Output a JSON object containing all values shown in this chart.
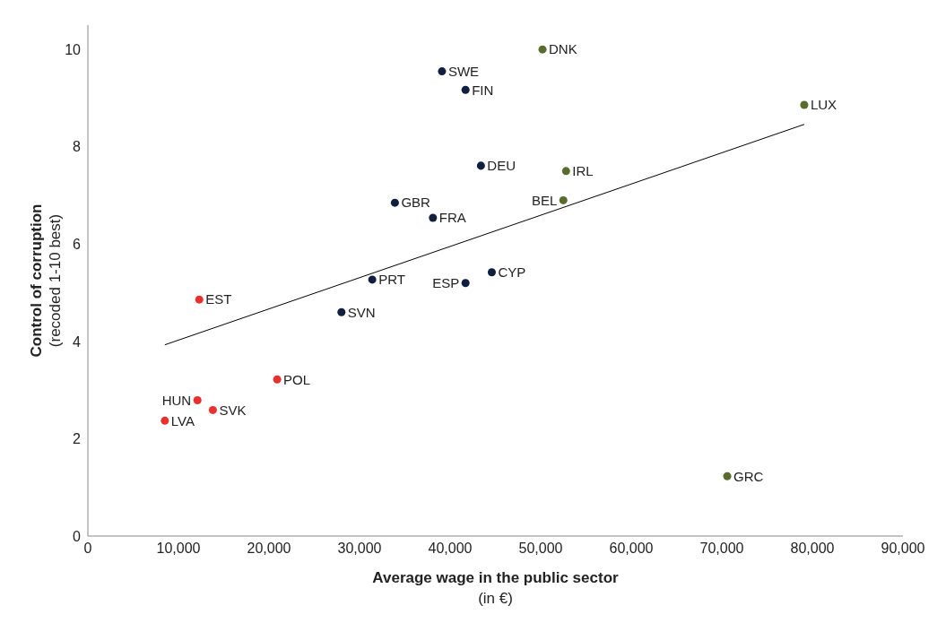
{
  "chart_data": {
    "type": "scatter",
    "xlabel": "Average wage in the public sector (in €)",
    "ylabel": "Control of corruption (recoded 1-10 best)",
    "xlim": [
      0,
      90000
    ],
    "xticks": [
      {
        "value": 0,
        "label": "0"
      },
      {
        "value": 10000,
        "label": "10,000"
      },
      {
        "value": 20000,
        "label": "20,000"
      },
      {
        "value": 30000,
        "label": "30,000"
      },
      {
        "value": 40000,
        "label": "40,000"
      },
      {
        "value": 50000,
        "label": "50,000"
      },
      {
        "value": 60000,
        "label": "60,000"
      },
      {
        "value": 70000,
        "label": "70,000"
      },
      {
        "value": 80000,
        "label": "80,000"
      },
      {
        "value": 90000,
        "label": "90,000"
      }
    ],
    "ylim": [
      0,
      10.5
    ],
    "yticks": [
      0,
      2,
      4,
      6,
      8,
      10
    ],
    "grid": false,
    "marker": "circle",
    "series": [
      {
        "type": "scatter",
        "color": "#0f1f3d",
        "x": [
          39100,
          41700,
          43400,
          33900,
          38100,
          31400,
          44600,
          41700,
          28000
        ],
        "values": [
          9.55,
          9.17,
          7.61,
          6.85,
          6.54,
          5.27,
          5.42,
          5.2,
          4.6
        ]
      },
      {
        "type": "scatter",
        "color": "#5a6b2e",
        "x": [
          50200,
          79100,
          52800,
          52500,
          70600
        ],
        "values": [
          10.0,
          8.86,
          7.5,
          6.9,
          1.23
        ]
      },
      {
        "type": "scatter",
        "color": "#e8312f",
        "x": [
          12300,
          20900,
          12100,
          13800,
          8500
        ],
        "values": [
          4.86,
          3.22,
          2.79,
          2.59,
          2.37
        ]
      },
      {
        "type": "line",
        "color": "#000000",
        "marker": "none",
        "x": [
          8500,
          79100
        ],
        "values": [
          3.93,
          8.46
        ]
      }
    ],
    "annotations": [
      {
        "text": "SWE",
        "x": 39100,
        "y": 9.55
      },
      {
        "text": "FIN",
        "x": 41700,
        "y": 9.17
      },
      {
        "text": "DEU",
        "x": 43400,
        "y": 7.61
      },
      {
        "text": "GBR",
        "x": 33900,
        "y": 6.85
      },
      {
        "text": "FRA",
        "x": 38100,
        "y": 6.54
      },
      {
        "text": "PRT",
        "x": 31400,
        "y": 5.27
      },
      {
        "text": "CYP",
        "x": 44600,
        "y": 5.42
      },
      {
        "text": "ESP",
        "x": 41700,
        "y": 5.2
      },
      {
        "text": "SVN",
        "x": 28000,
        "y": 4.6
      },
      {
        "text": "DNK",
        "x": 50200,
        "y": 10.0
      },
      {
        "text": "LUX",
        "x": 79100,
        "y": 8.86
      },
      {
        "text": "IRL",
        "x": 52800,
        "y": 7.5
      },
      {
        "text": "BEL",
        "x": 52500,
        "y": 6.9
      },
      {
        "text": "GRC",
        "x": 70600,
        "y": 1.23
      },
      {
        "text": "EST",
        "x": 12300,
        "y": 4.86
      },
      {
        "text": "POL",
        "x": 20900,
        "y": 3.22
      },
      {
        "text": "HUN",
        "x": 12100,
        "y": 2.79
      },
      {
        "text": "SVK",
        "x": 13800,
        "y": 2.59
      },
      {
        "text": "LVA",
        "x": 8500,
        "y": 2.37
      }
    ]
  }
}
